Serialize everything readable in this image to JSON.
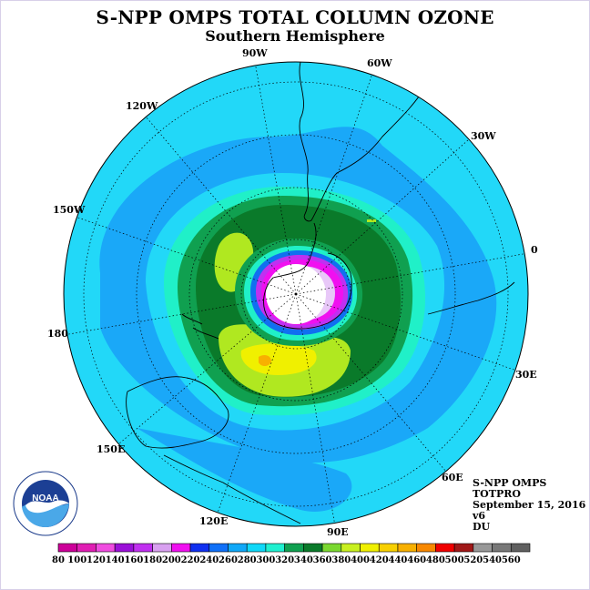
{
  "title": "S-NPP OMPS TOTAL COLUMN OZONE",
  "subtitle": "Southern Hemisphere",
  "longitude_labels": [
    "90W",
    "60W",
    "30W",
    "0",
    "30E",
    "60E",
    "90E",
    "120E",
    "150E",
    "180",
    "150W",
    "120W"
  ],
  "info": {
    "line1": "S-NPP OMPS",
    "line2": "TOTPRO",
    "line3": "September 15, 2016",
    "line4": "v6",
    "line5": "DU"
  },
  "logo": {
    "text": "NOAA",
    "ring_text": "NATIONAL OCEANIC AND ATMOSPHERIC ADMINISTRATION U.S. DEPARTMENT OF COMMERCE"
  },
  "colorbar": {
    "labels": [
      "80",
      "100",
      "120",
      "140",
      "160",
      "180",
      "200",
      "220",
      "240",
      "260",
      "280",
      "300",
      "320",
      "340",
      "360",
      "380",
      "400",
      "420",
      "440",
      "460",
      "480",
      "500",
      "520",
      "540",
      "560"
    ],
    "colors": [
      "#cc0099",
      "#e01eb4",
      "#f04ce0",
      "#9a10d8",
      "#c030f0",
      "#d8a0f0",
      "#f010f0",
      "#1030f0",
      "#1070f8",
      "#10a8f8",
      "#10d8f8",
      "#20f0d0",
      "#10a050",
      "#0a7a2a",
      "#7ad830",
      "#c8f020",
      "#f0f000",
      "#f8d000",
      "#f8b000",
      "#f88800",
      "#f00000",
      "#a01818",
      "#989898",
      "#787878",
      "#606060"
    ]
  },
  "legend_colors": {
    "background_ocean_cyan": "#22d8f8",
    "mid_blue": "#1aa8f8",
    "deep_blue": "#1070f0",
    "teal": "#20f0c8",
    "green": "#10a050",
    "dark_green": "#0a7a2a",
    "yellow_green": "#b0e820",
    "yellow": "#f0f000",
    "orange": "#f8b000",
    "magenta": "#f010f0",
    "purple": "#c030f0"
  }
}
